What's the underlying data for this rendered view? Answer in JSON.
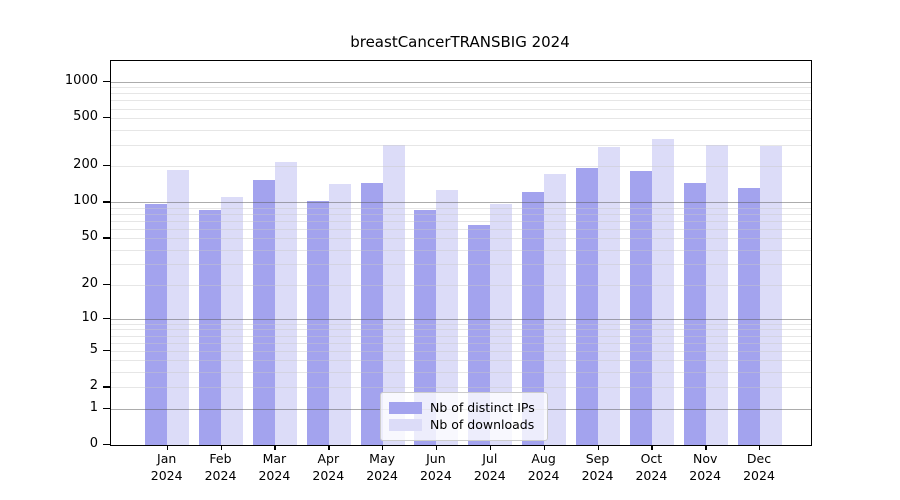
{
  "title": "breastCancerTRANSBIG 2024",
  "colors": {
    "ips_bar": "#a3a3ee",
    "downloads_bar": "#dcdcf8",
    "decade_gridline": "#aaaaaa",
    "minor_gridline": "#e8e8e8"
  },
  "legend": {
    "entries": [
      "Nb of distinct IPs",
      "Nb of downloads"
    ]
  },
  "chart_data": {
    "type": "bar",
    "title": "breastCancerTRANSBIG 2024",
    "categories": [
      "Jan 2024",
      "Feb 2024",
      "Mar 2024",
      "Apr 2024",
      "May 2024",
      "Jun 2024",
      "Jul 2024",
      "Aug 2024",
      "Sep 2024",
      "Oct 2024",
      "Nov 2024",
      "Dec 2024"
    ],
    "series": [
      {
        "name": "Nb of distinct IPs",
        "color": "#a3a3ee",
        "values": [
          97,
          87,
          152,
          102,
          146,
          86,
          65,
          123,
          192,
          183,
          146,
          131
        ]
      },
      {
        "name": "Nb of downloads",
        "color": "#dcdcf8",
        "values": [
          186,
          110,
          216,
          143,
          299,
          126,
          97,
          173,
          286,
          333,
          299,
          296
        ]
      }
    ],
    "xlabel": "",
    "ylabel": "",
    "y_scale": "log10(value+1)",
    "y_ticks": [
      0,
      1,
      2,
      5,
      10,
      20,
      50,
      100,
      200,
      500,
      1000
    ],
    "ylim": [
      0,
      1480
    ],
    "grid": "horizontal, minor log lines, decade lines emphasized, drawn over bars",
    "legend_position": "lower center"
  }
}
